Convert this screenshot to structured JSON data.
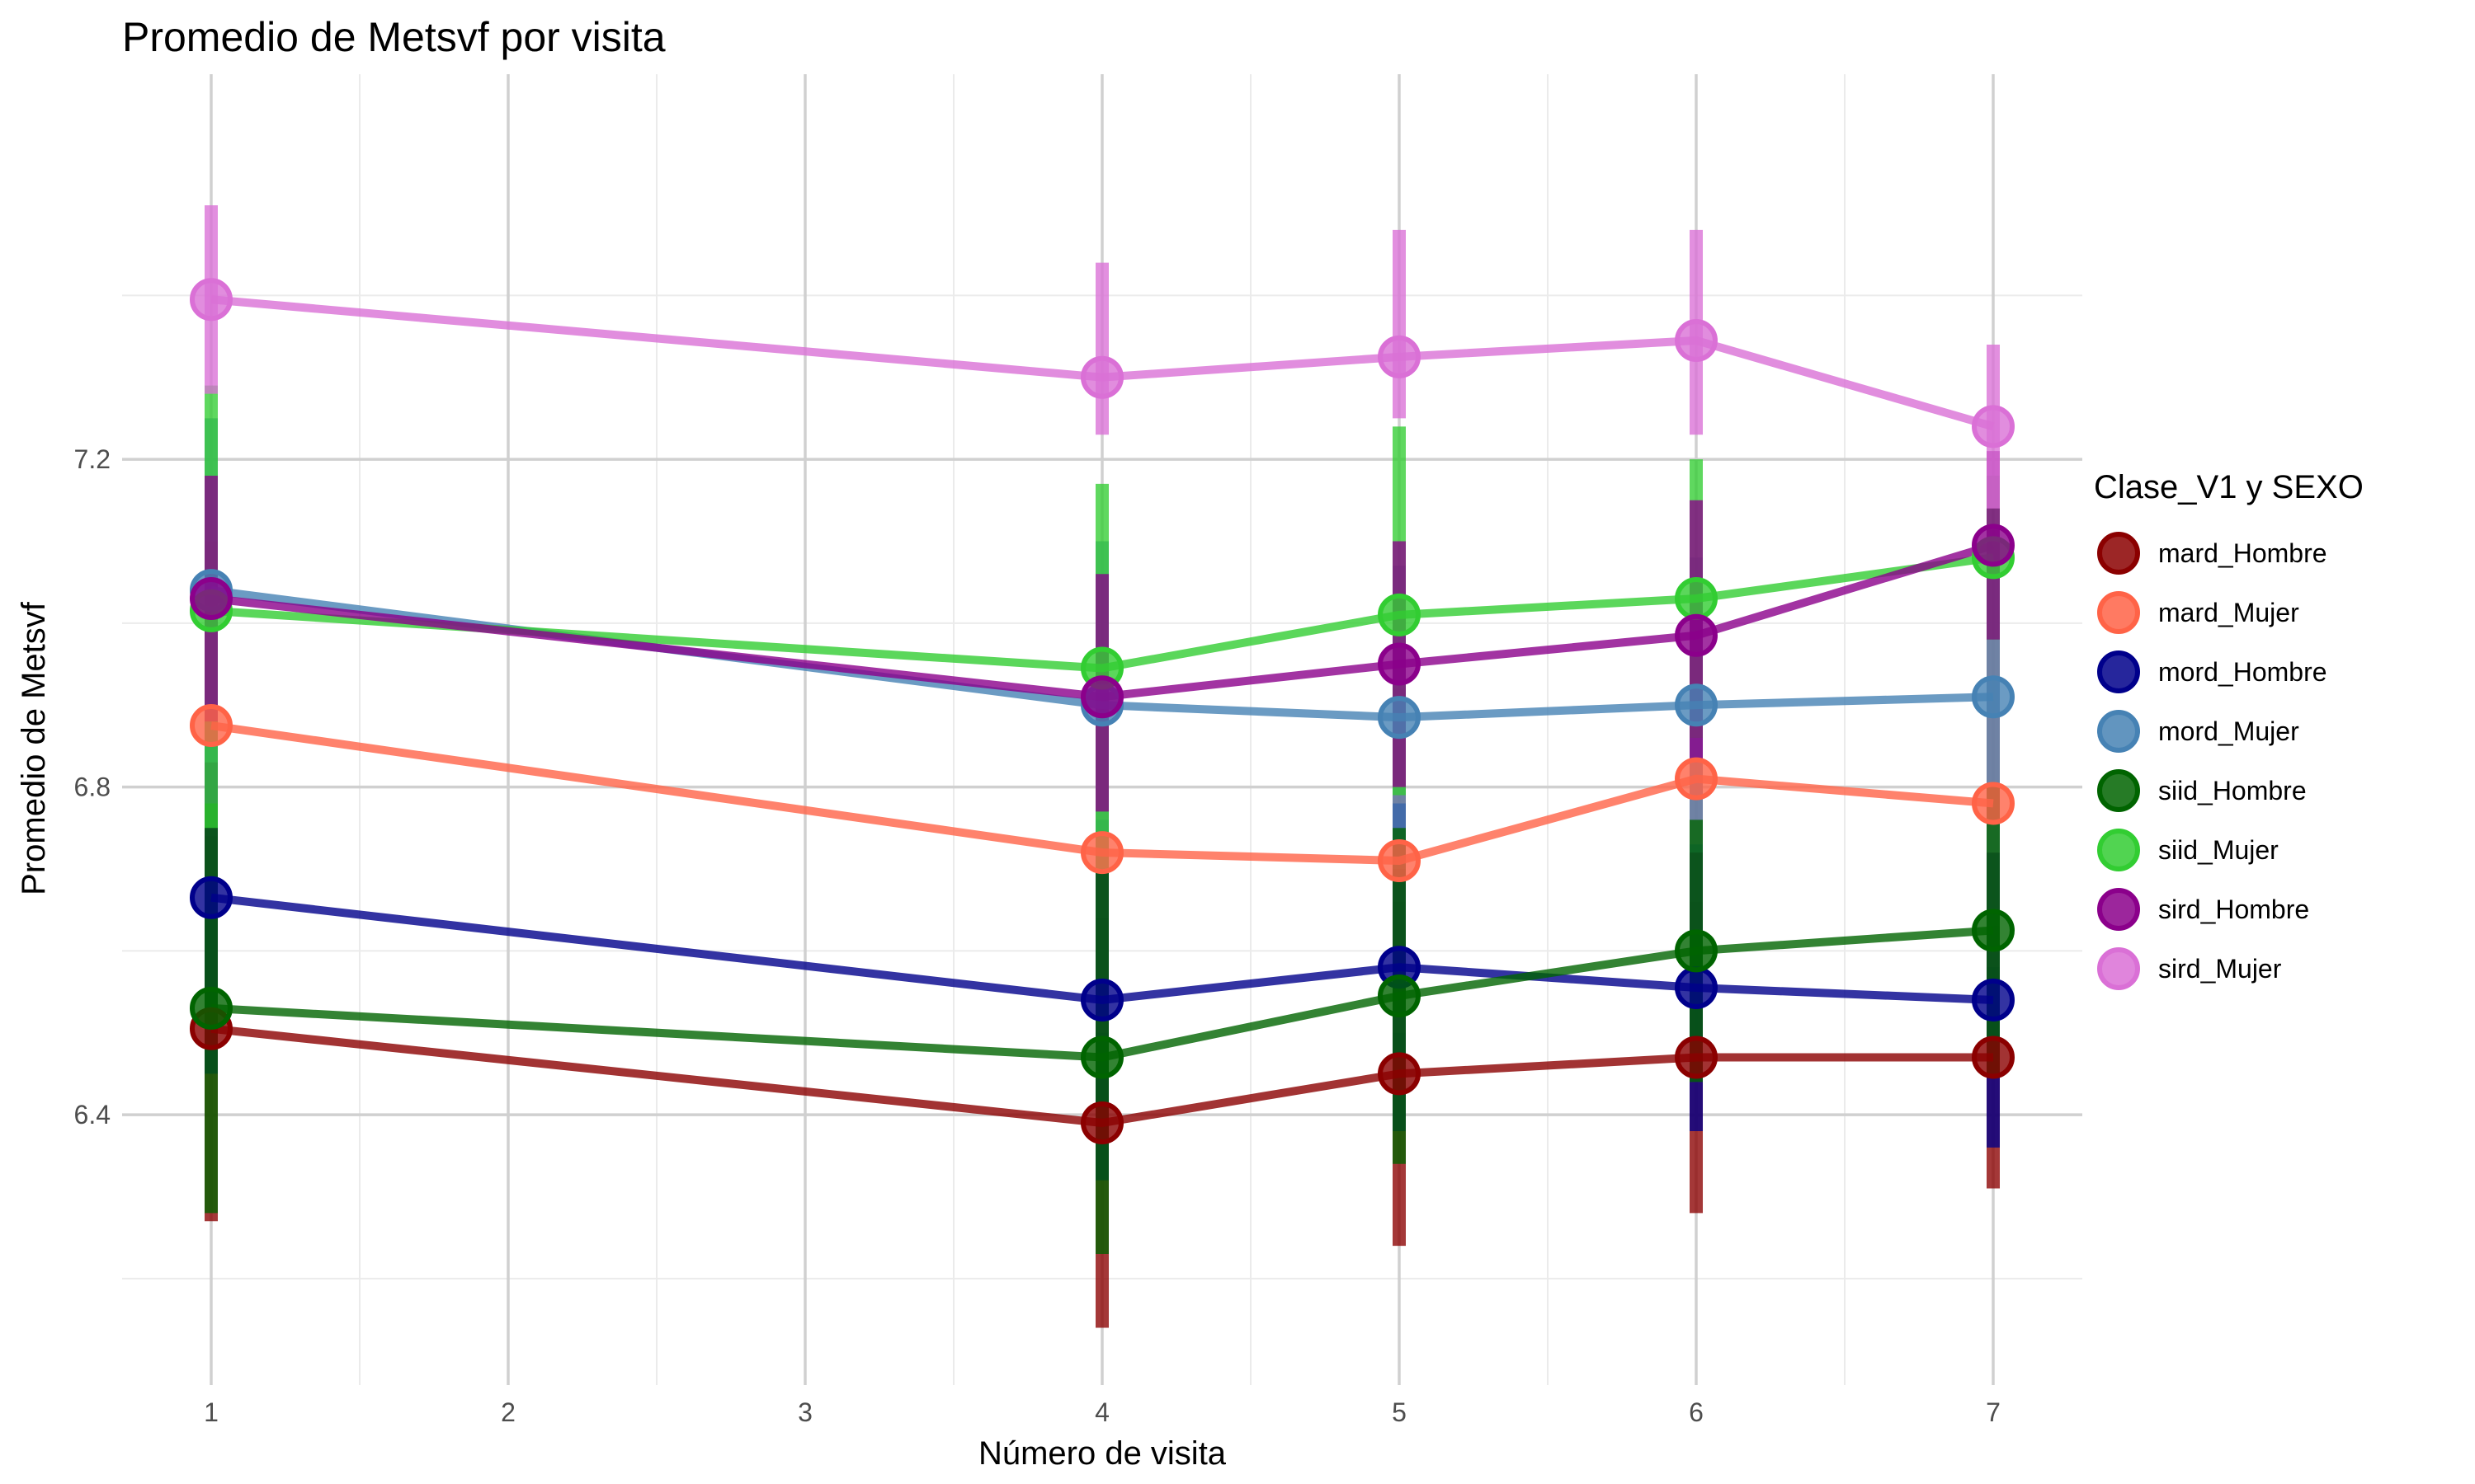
{
  "chart_data": {
    "type": "line",
    "title": "Promedio de Metsvf por visita",
    "xlabel": "Número de visita",
    "ylabel": "Promedio de Metsvf",
    "xlim": [
      0.7,
      7.3
    ],
    "ylim": [
      6.07,
      7.67
    ],
    "x_ticks": [
      1,
      2,
      3,
      4,
      5,
      6,
      7
    ],
    "x_tick_labels": [
      "1",
      "2",
      "3",
      "4",
      "5",
      "6",
      "7"
    ],
    "y_ticks": [
      6.4,
      6.8,
      7.2
    ],
    "y_tick_labels": [
      "6.4",
      "6.8",
      "7.2"
    ],
    "y_minor_ticks": [
      6.2,
      6.6,
      7.0,
      7.4
    ],
    "grid": true,
    "legend_title": "Clase_V1 y SEXO",
    "legend_position": "right",
    "series": [
      {
        "name": "mard_Hombre",
        "color": "#8B0000",
        "x": [
          1,
          4,
          5,
          6,
          7
        ],
        "values": [
          6.505,
          6.39,
          6.45,
          6.47,
          6.47
        ],
        "lower": [
          6.27,
          6.14,
          6.24,
          6.28,
          6.31
        ],
        "upper": [
          6.74,
          6.64,
          6.66,
          6.66,
          6.63
        ]
      },
      {
        "name": "mard_Mujer",
        "color": "#FF6347",
        "x": [
          1,
          4,
          5,
          6,
          7
        ],
        "values": [
          6.875,
          6.72,
          6.71,
          6.81,
          6.78
        ],
        "lower": [
          6.65,
          6.5,
          6.5,
          6.62,
          6.58
        ],
        "upper": [
          7.1,
          6.94,
          6.92,
          7.0,
          6.98
        ]
      },
      {
        "name": "mord_Hombre",
        "color": "#00008B",
        "x": [
          1,
          4,
          5,
          6,
          7
        ],
        "values": [
          6.665,
          6.54,
          6.58,
          6.555,
          6.54
        ],
        "lower": [
          6.45,
          6.32,
          6.38,
          6.38,
          6.36
        ],
        "upper": [
          6.88,
          6.76,
          6.78,
          6.73,
          6.72
        ]
      },
      {
        "name": "mord_Mujer",
        "color": "#4682B4",
        "x": [
          1,
          4,
          5,
          6,
          7
        ],
        "values": [
          7.04,
          6.9,
          6.885,
          6.9,
          6.91
        ],
        "lower": [
          6.83,
          6.7,
          6.7,
          6.72,
          6.72
        ],
        "upper": [
          7.25,
          7.1,
          7.07,
          7.08,
          7.1
        ]
      },
      {
        "name": "siid_Hombre",
        "color": "#006400",
        "x": [
          1,
          4,
          5,
          6,
          7
        ],
        "values": [
          6.53,
          6.47,
          6.545,
          6.6,
          6.625
        ],
        "lower": [
          6.28,
          6.23,
          6.34,
          6.44,
          6.45
        ],
        "upper": [
          6.78,
          6.7,
          6.75,
          6.76,
          6.8
        ]
      },
      {
        "name": "siid_Mujer",
        "color": "#32CD32",
        "x": [
          1,
          4,
          5,
          6,
          7
        ],
        "values": [
          7.015,
          6.945,
          7.01,
          7.03,
          7.08
        ],
        "lower": [
          6.75,
          6.7,
          6.79,
          6.86,
          6.98
        ],
        "upper": [
          7.29,
          7.17,
          7.24,
          7.2,
          7.18
        ]
      },
      {
        "name": "sird_Hombre",
        "color": "#8B008B",
        "x": [
          1,
          4,
          5,
          6,
          7
        ],
        "values": [
          7.03,
          6.91,
          6.95,
          6.985,
          7.095
        ],
        "lower": [
          6.88,
          6.77,
          6.8,
          6.83,
          6.98
        ],
        "upper": [
          7.18,
          7.06,
          7.1,
          7.15,
          7.21
        ]
      },
      {
        "name": "sird_Mujer",
        "color": "#DA70D6",
        "x": [
          1,
          4,
          5,
          6,
          7
        ],
        "values": [
          7.395,
          7.3,
          7.325,
          7.345,
          7.24
        ],
        "lower": [
          7.28,
          7.23,
          7.25,
          7.23,
          7.14
        ],
        "upper": [
          7.51,
          7.44,
          7.48,
          7.48,
          7.34
        ]
      }
    ]
  }
}
